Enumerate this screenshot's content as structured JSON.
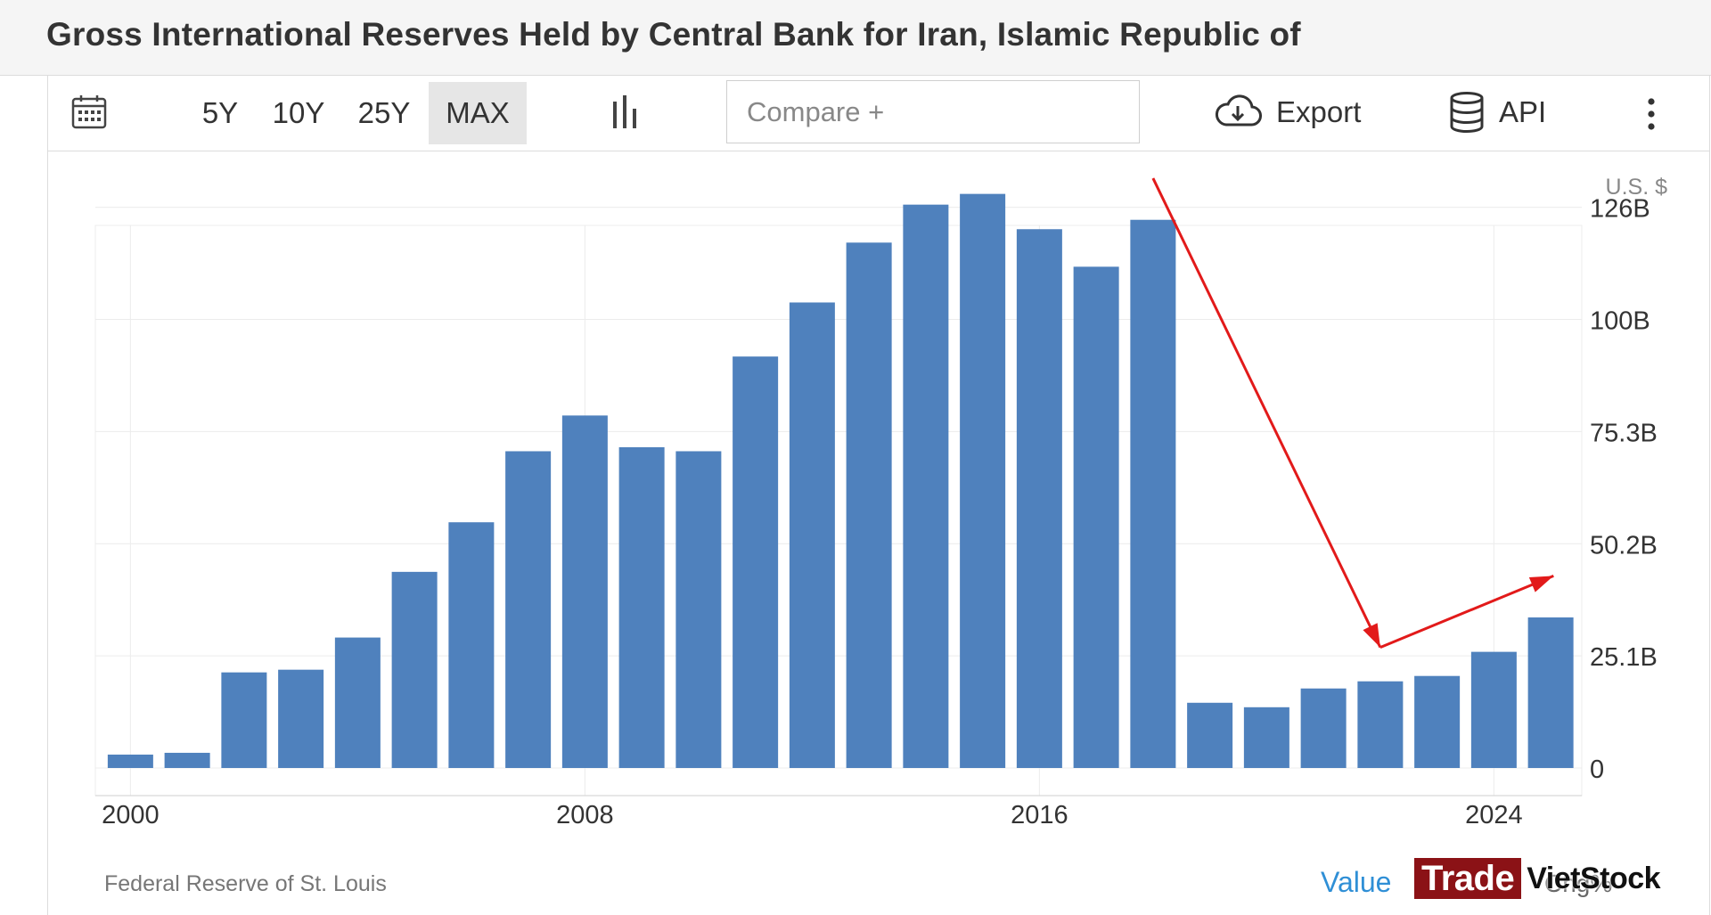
{
  "header": {
    "title": "Gross International Reserves Held by Central Bank for Iran, Islamic Republic of"
  },
  "toolbar": {
    "ranges": [
      "5Y",
      "10Y",
      "25Y",
      "MAX"
    ],
    "active_range": "MAX",
    "compare_placeholder": "Compare +",
    "export_label": "Export",
    "api_label": "API"
  },
  "footer": {
    "source": "Federal Reserve of St. Louis",
    "value_tab": "Value",
    "chg_tab": "Chg%",
    "watermark_trade": "Trade",
    "watermark_viet": "VietStock"
  },
  "colors": {
    "bar": "#4f81bd",
    "arrow": "#e21a1a",
    "grid": "#ececec",
    "accent": "#2f8fd6"
  },
  "chart_data": {
    "type": "bar",
    "unit_label": "U.S. $",
    "categories": [
      "2000",
      "2001",
      "2002",
      "2003",
      "2004",
      "2005",
      "2006",
      "2007",
      "2008",
      "2009",
      "2010",
      "2011",
      "2012",
      "2013",
      "2014",
      "2015",
      "2016",
      "2017",
      "2018",
      "2019",
      "2020",
      "2021",
      "2022",
      "2023",
      "2024",
      "2025"
    ],
    "values": [
      3.0,
      3.4,
      21.4,
      22.0,
      29.2,
      43.9,
      55.0,
      70.9,
      78.9,
      71.8,
      70.9,
      92.1,
      104.2,
      117.6,
      126.1,
      128.5,
      120.6,
      112.2,
      122.7,
      14.6,
      13.6,
      17.8,
      19.4,
      20.6,
      26.0,
      33.7
    ],
    "x_tick_labels": [
      "2000",
      "2008",
      "2016",
      "2024"
    ],
    "y_tick_labels": [
      "0",
      "25.1B",
      "50.2B",
      "75.3B",
      "100B",
      "126B"
    ],
    "y_ticks": [
      0,
      25.1,
      50.2,
      75.3,
      100.4,
      125.5
    ],
    "ylim": [
      0,
      138
    ],
    "annotations": [
      {
        "type": "arrow",
        "from": [
          "2018",
          132
        ],
        "to": [
          "2022",
          27
        ]
      },
      {
        "type": "arrow",
        "from": [
          "2022",
          27
        ],
        "to": [
          "2025.05",
          43
        ]
      }
    ]
  }
}
